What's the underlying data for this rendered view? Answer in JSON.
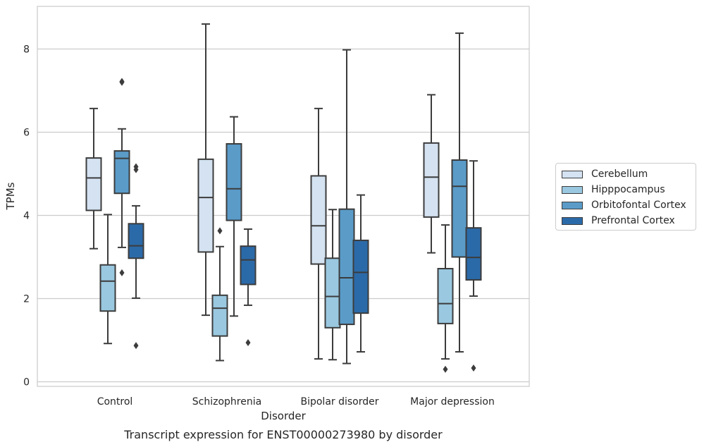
{
  "chart_data": {
    "type": "box",
    "title": "Transcript expression for ENST00000273980 by disorder",
    "xlabel": "Disorder",
    "ylabel": "TPMs",
    "ylim": [
      -0.1,
      9.1
    ],
    "yticks": [
      "0",
      "2",
      "4",
      "6",
      "8"
    ],
    "grid": "horizontal",
    "legend_position": "right",
    "categories": [
      "Control",
      "Schizophrenia",
      "Bipolar disorder",
      "Major depression"
    ],
    "series": [
      {
        "name": "Cerebellum",
        "color": "#d4e2f1",
        "boxes": [
          {
            "whislo": 3.2,
            "q1": 4.12,
            "med": 4.9,
            "q3": 5.38,
            "whishi": 6.57,
            "fliers": []
          },
          {
            "whislo": 1.6,
            "q1": 3.12,
            "med": 4.43,
            "q3": 5.35,
            "whishi": 8.6,
            "fliers": []
          },
          {
            "whislo": 0.55,
            "q1": 2.83,
            "med": 3.75,
            "q3": 4.95,
            "whishi": 6.57,
            "fliers": []
          },
          {
            "whislo": 3.1,
            "q1": 3.96,
            "med": 4.92,
            "q3": 5.74,
            "whishi": 6.9,
            "fliers": []
          }
        ]
      },
      {
        "name": "Hipppocampus",
        "color": "#9ac8e0",
        "boxes": [
          {
            "whislo": 0.92,
            "q1": 1.7,
            "med": 2.42,
            "q3": 2.81,
            "whishi": 4.02,
            "fliers": []
          },
          {
            "whislo": 0.51,
            "q1": 1.1,
            "med": 1.77,
            "q3": 2.08,
            "whishi": 3.25,
            "fliers": [
              3.63
            ]
          },
          {
            "whislo": 0.53,
            "q1": 1.3,
            "med": 2.05,
            "q3": 2.97,
            "whishi": 4.14,
            "fliers": []
          },
          {
            "whislo": 0.55,
            "q1": 1.4,
            "med": 1.88,
            "q3": 2.72,
            "whishi": 3.77,
            "fliers": [
              0.3
            ]
          }
        ]
      },
      {
        "name": "Orbitofontal Cortex",
        "color": "#5a9bc8",
        "boxes": [
          {
            "whislo": 3.23,
            "q1": 4.53,
            "med": 5.37,
            "q3": 5.55,
            "whishi": 6.08,
            "fliers": [
              7.22,
              7.2,
              2.62
            ]
          },
          {
            "whislo": 1.58,
            "q1": 3.88,
            "med": 4.64,
            "q3": 5.72,
            "whishi": 6.37,
            "fliers": []
          },
          {
            "whislo": 0.44,
            "q1": 1.38,
            "med": 2.5,
            "q3": 4.15,
            "whishi": 7.98,
            "fliers": []
          },
          {
            "whislo": 0.72,
            "q1": 3.0,
            "med": 4.7,
            "q3": 5.33,
            "whishi": 8.38,
            "fliers": []
          }
        ]
      },
      {
        "name": "Prefrontal Cortex",
        "color": "#2b6aa8",
        "boxes": [
          {
            "whislo": 2.01,
            "q1": 2.97,
            "med": 3.27,
            "q3": 3.8,
            "whishi": 4.23,
            "fliers": [
              5.17,
              5.1,
              0.87
            ]
          },
          {
            "whislo": 1.84,
            "q1": 2.34,
            "med": 2.93,
            "q3": 3.26,
            "whishi": 3.67,
            "fliers": [
              0.94
            ]
          },
          {
            "whislo": 0.72,
            "q1": 1.65,
            "med": 2.63,
            "q3": 3.4,
            "whishi": 4.49,
            "fliers": []
          },
          {
            "whislo": 2.06,
            "q1": 2.45,
            "med": 2.99,
            "q3": 3.7,
            "whishi": 5.31,
            "fliers": [
              0.33
            ]
          }
        ]
      }
    ]
  }
}
